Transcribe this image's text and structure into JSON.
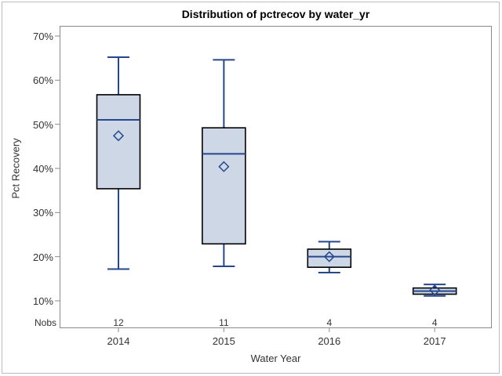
{
  "title": "Distribution of pctrecov by water_yr",
  "y_axis": {
    "label": "Pct Recovery",
    "tick_values": [
      70,
      60,
      50,
      40,
      30,
      20,
      10
    ],
    "tick_labels": [
      "70%",
      "60%",
      "50%",
      "40%",
      "30%",
      "20%",
      "10%"
    ]
  },
  "x_axis": {
    "label": "Water Year",
    "categories": [
      "2014",
      "2015",
      "2016",
      "2017"
    ]
  },
  "nobs": {
    "header": "Nobs",
    "values": [
      "12",
      "11",
      "4",
      "4"
    ]
  },
  "chart_data": {
    "type": "box",
    "title": "Distribution of pctrecov by water_yr",
    "xlabel": "Water Year",
    "ylabel": "Pct Recovery",
    "ylim": [
      10,
      70
    ],
    "y_tick_step": 10,
    "y_tick_format": "percent",
    "grid": false,
    "legend": "none",
    "categories": [
      "2014",
      "2015",
      "2016",
      "2017"
    ],
    "series": [
      {
        "category": "2014",
        "nobs": 12,
        "min": 17.2,
        "q1": 35.4,
        "median": 51.0,
        "q3": 56.7,
        "max": 65.2,
        "mean": 47.4
      },
      {
        "category": "2015",
        "nobs": 11,
        "min": 17.8,
        "q1": 22.9,
        "median": 43.3,
        "q3": 49.2,
        "max": 64.6,
        "mean": 40.4
      },
      {
        "category": "2016",
        "nobs": 4,
        "min": 16.4,
        "q1": 17.6,
        "median": 20.0,
        "q3": 21.7,
        "max": 23.4,
        "mean": 20.0
      },
      {
        "category": "2017",
        "nobs": 4,
        "min": 11.1,
        "q1": 11.5,
        "median": 12.2,
        "q3": 12.9,
        "max": 13.7,
        "mean": 12.4
      }
    ]
  },
  "colors": {
    "box_fill": "#cdd7e6",
    "box_outline": "#000000",
    "whisker_line": "#26478d",
    "median_line": "#26478d",
    "mean_marker": "#26478d",
    "axis_line": "#8a8a8a",
    "text": "#333333",
    "outer_border": "#bdbdbd",
    "background": "#ffffff"
  }
}
